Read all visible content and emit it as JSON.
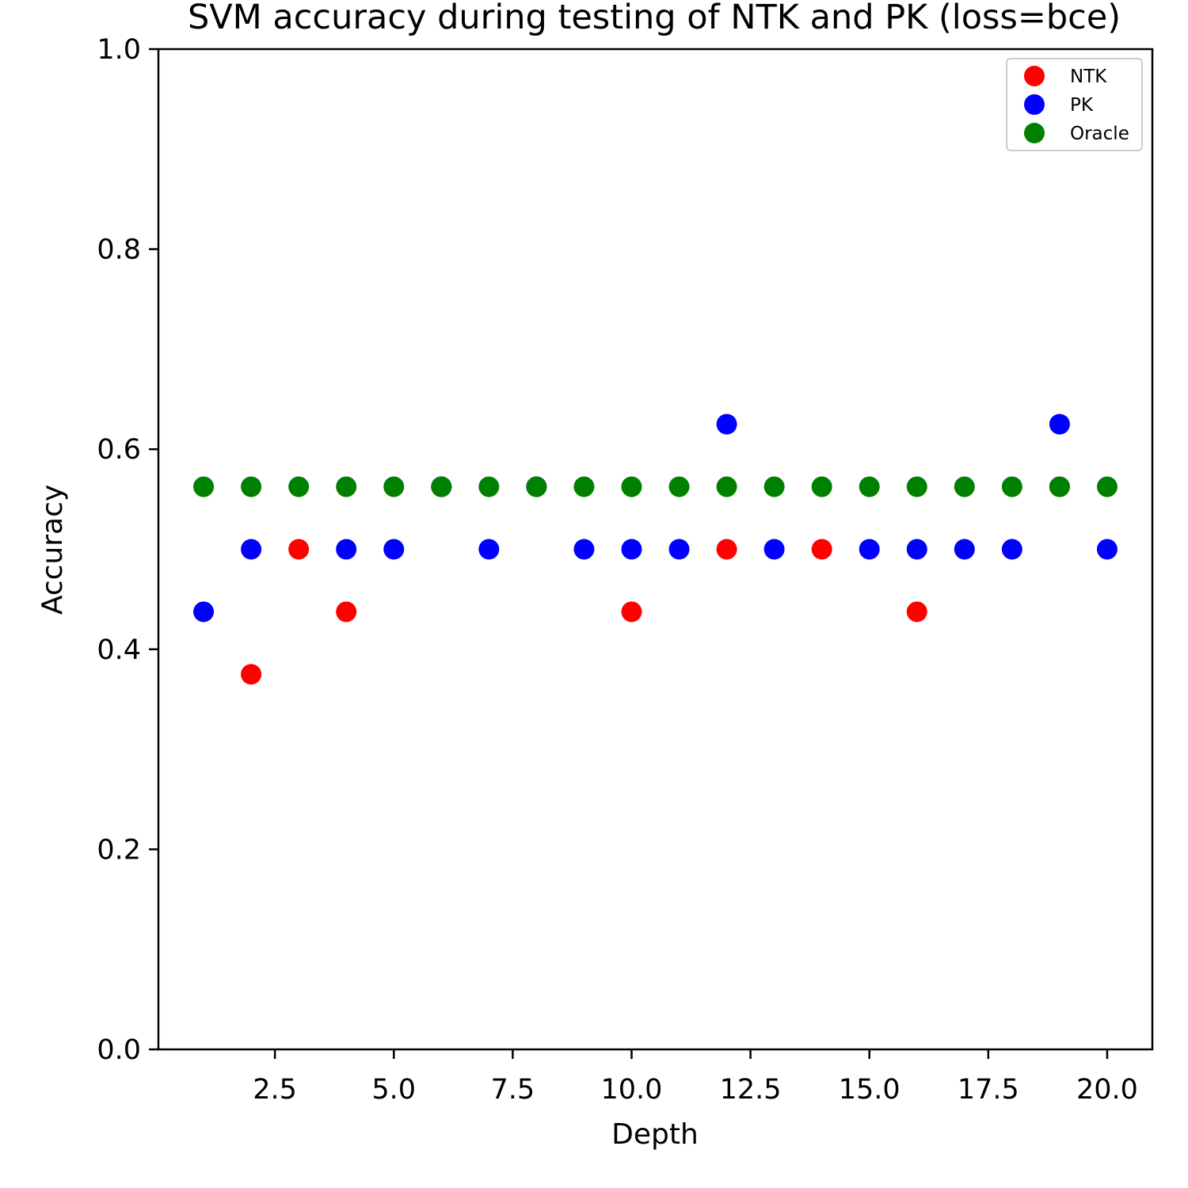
{
  "chart_data": {
    "type": "scatter",
    "title": "SVM accuracy during testing of NTK and PK (loss=bce)",
    "xlabel": "Depth",
    "ylabel": "Accuracy",
    "xlim": [
      0.05,
      20.95
    ],
    "ylim": [
      0.0,
      1.0
    ],
    "xticks": [
      2.5,
      5.0,
      7.5,
      10.0,
      12.5,
      15.0,
      17.5,
      20.0
    ],
    "xtick_labels": [
      "2.5",
      "5.0",
      "7.5",
      "10.0",
      "12.5",
      "15.0",
      "17.5",
      "20.0"
    ],
    "yticks": [
      0.0,
      0.2,
      0.4,
      0.6,
      0.8,
      1.0
    ],
    "ytick_labels": [
      "0.0",
      "0.2",
      "0.4",
      "0.6",
      "0.8",
      "1.0"
    ],
    "grid": false,
    "legend_position": "top-right",
    "series": [
      {
        "name": "NTK",
        "color": "#ff0000",
        "points": [
          [
            2,
            0.375
          ],
          [
            3,
            0.5
          ],
          [
            4,
            0.4375
          ],
          [
            6,
            0.5625
          ],
          [
            8,
            0.5625
          ],
          [
            10,
            0.4375
          ],
          [
            12,
            0.5
          ],
          [
            14,
            0.5
          ],
          [
            16,
            0.4375
          ],
          [
            19,
            0.5625
          ]
        ]
      },
      {
        "name": "PK",
        "color": "#0000ff",
        "points": [
          [
            1,
            0.4375
          ],
          [
            2,
            0.5
          ],
          [
            4,
            0.5
          ],
          [
            5,
            0.5
          ],
          [
            6,
            0.5625
          ],
          [
            7,
            0.5
          ],
          [
            8,
            0.5625
          ],
          [
            9,
            0.5
          ],
          [
            10,
            0.5
          ],
          [
            11,
            0.5
          ],
          [
            12,
            0.625
          ],
          [
            13,
            0.5
          ],
          [
            15,
            0.5
          ],
          [
            16,
            0.5
          ],
          [
            17,
            0.5
          ],
          [
            18,
            0.5
          ],
          [
            19,
            0.625
          ],
          [
            20,
            0.5
          ]
        ]
      },
      {
        "name": "Oracle",
        "color": "#008000",
        "points": [
          [
            1,
            0.5625
          ],
          [
            2,
            0.5625
          ],
          [
            3,
            0.5625
          ],
          [
            4,
            0.5625
          ],
          [
            5,
            0.5625
          ],
          [
            6,
            0.5625
          ],
          [
            7,
            0.5625
          ],
          [
            8,
            0.5625
          ],
          [
            9,
            0.5625
          ],
          [
            10,
            0.5625
          ],
          [
            11,
            0.5625
          ],
          [
            12,
            0.5625
          ],
          [
            13,
            0.5625
          ],
          [
            14,
            0.5625
          ],
          [
            15,
            0.5625
          ],
          [
            16,
            0.5625
          ],
          [
            17,
            0.5625
          ],
          [
            18,
            0.5625
          ],
          [
            19,
            0.5625
          ],
          [
            20,
            0.5625
          ]
        ]
      }
    ]
  }
}
